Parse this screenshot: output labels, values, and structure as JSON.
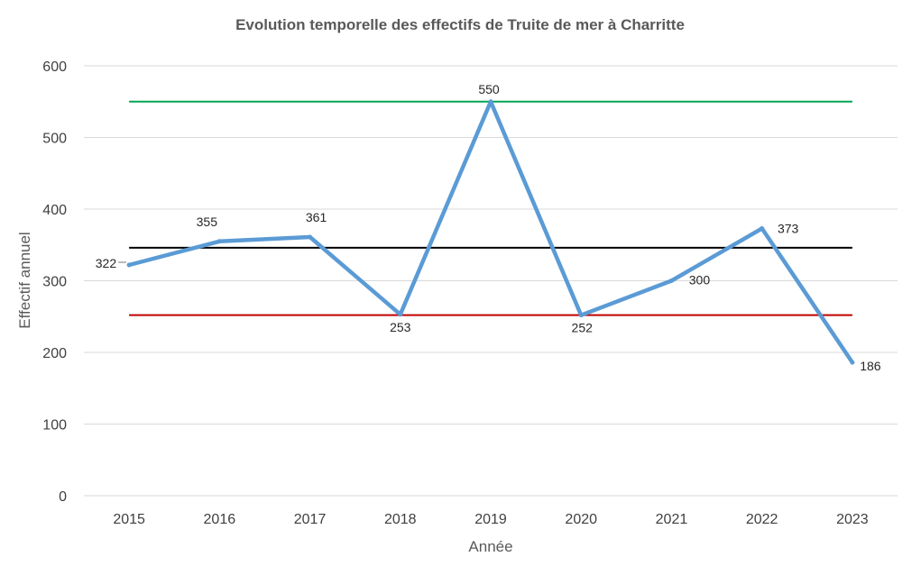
{
  "chart_data": {
    "type": "line",
    "title": "Evolution temporelle des effectifs de Truite de mer à Charritte",
    "xlabel": "Année",
    "ylabel": "Effectif annuel",
    "categories": [
      "2015",
      "2016",
      "2017",
      "2018",
      "2019",
      "2020",
      "2021",
      "2022",
      "2023"
    ],
    "series": [
      {
        "values": [
          322,
          355,
          361,
          253,
          550,
          252,
          300,
          373,
          186
        ],
        "color": "#5b9bd5",
        "data_labels": true
      }
    ],
    "reference_lines": [
      {
        "value": 550,
        "color": "#00a650"
      },
      {
        "value": 346,
        "color": "#000000"
      },
      {
        "value": 252,
        "color": "#c00000"
      }
    ],
    "ylim": [
      0,
      600
    ],
    "yticks": [
      "0",
      "100",
      "200",
      "300",
      "400",
      "500",
      "600"
    ],
    "grid": true,
    "legend": "none"
  }
}
